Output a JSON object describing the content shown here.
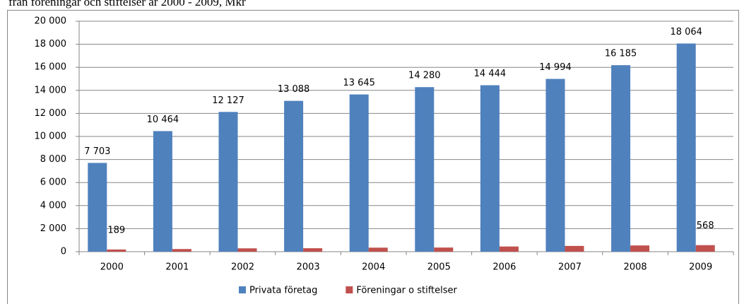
{
  "chart_data": {
    "type": "bar",
    "title": "från föreningar och stiftelser år 2000 - 2009, Mkr",
    "categories": [
      "2000",
      "2001",
      "2002",
      "2003",
      "2004",
      "2005",
      "2006",
      "2007",
      "2008",
      "2009"
    ],
    "series": [
      {
        "name": "Privata företag",
        "color": "#4f81bd",
        "values": [
          7703,
          10464,
          12127,
          13088,
          13645,
          14280,
          14444,
          14994,
          16185,
          18064
        ],
        "value_labels": [
          "7 703",
          "10 464",
          "12 127",
          "13 088",
          "13 645",
          "14 280",
          "14 444",
          "14 994",
          "16 185",
          "18 064"
        ]
      },
      {
        "name": "Föreningar o stiftelser",
        "color": "#c0504d",
        "values": [
          189,
          230,
          290,
          300,
          350,
          360,
          450,
          500,
          540,
          568
        ],
        "value_labels": [
          "189",
          null,
          null,
          null,
          null,
          null,
          null,
          null,
          null,
          "568"
        ]
      }
    ],
    "ylim": [
      0,
      20000
    ],
    "yticks": [
      0,
      {
        "value": 2000,
        "label": "2 000"
      },
      {
        "value": 4000,
        "label": "4 000"
      },
      {
        "value": 6000,
        "label": "6 000"
      },
      {
        "value": 8000,
        "label": "8 000"
      },
      {
        "value": 10000,
        "label": "10 000"
      },
      {
        "value": 12000,
        "label": "12 000"
      },
      {
        "value": 14000,
        "label": "14 000"
      },
      {
        "value": 16000,
        "label": "16 000"
      },
      {
        "value": 18000,
        "label": "18 000"
      },
      {
        "value": 20000,
        "label": "20 000"
      }
    ],
    "grid": true,
    "legend": "bottom"
  }
}
